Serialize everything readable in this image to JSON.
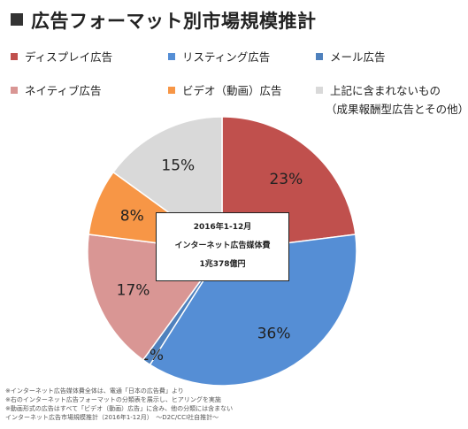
{
  "title": "広告フォーマット別市場規模推計",
  "legend": [
    {
      "label": "ディスプレイ広告",
      "color": "#c0504d"
    },
    {
      "label": "リスティング広告",
      "color": "#558ed5"
    },
    {
      "label": "メール広告",
      "color": "#4f81bd"
    },
    {
      "label": "ネイティブ広告",
      "color": "#d99694"
    },
    {
      "label": "ビデオ（動画）広告",
      "color": "#f79646"
    },
    {
      "label": "上記に含まれないもの",
      "color": "#d9d9d9"
    }
  ],
  "legend_sub": "（成果報酬型広告とその他）",
  "center_box": {
    "line1": "2016年1-12月",
    "line2": "インターネット広告媒体費",
    "line3": "1兆378億円"
  },
  "notes": [
    "※インターネット広告媒体費全体は、電通「日本の広告費」より",
    "※右のインターネット広告フォーマットの分類表を展示し、ヒアリングを実施",
    "※動画形式の広告はすべて「ビデオ（動画）広告」に含み、他の分類には含まない",
    "インターネット広告市場規模推計（2016年1-12月）　～D2C/CCI社自推計～"
  ],
  "chart_data": {
    "type": "pie",
    "title": "広告フォーマット別市場規模推計",
    "slices": [
      {
        "label": "ディスプレイ広告",
        "value": 23,
        "display": "23%",
        "color": "#c0504d"
      },
      {
        "label": "リスティング広告",
        "value": 36,
        "display": "36%",
        "color": "#558ed5"
      },
      {
        "label": "メール広告",
        "value": 1,
        "display": "1%",
        "color": "#4f81bd"
      },
      {
        "label": "ネイティブ広告",
        "value": 17,
        "display": "17%",
        "color": "#d99694"
      },
      {
        "label": "ビデオ（動画）広告",
        "value": 8,
        "display": "8%",
        "color": "#f79646"
      },
      {
        "label": "上記に含まれないもの",
        "value": 15,
        "display": "15%",
        "color": "#d9d9d9"
      }
    ],
    "start_angle_deg": 0,
    "direction": "clockwise",
    "legend_position": "top"
  }
}
